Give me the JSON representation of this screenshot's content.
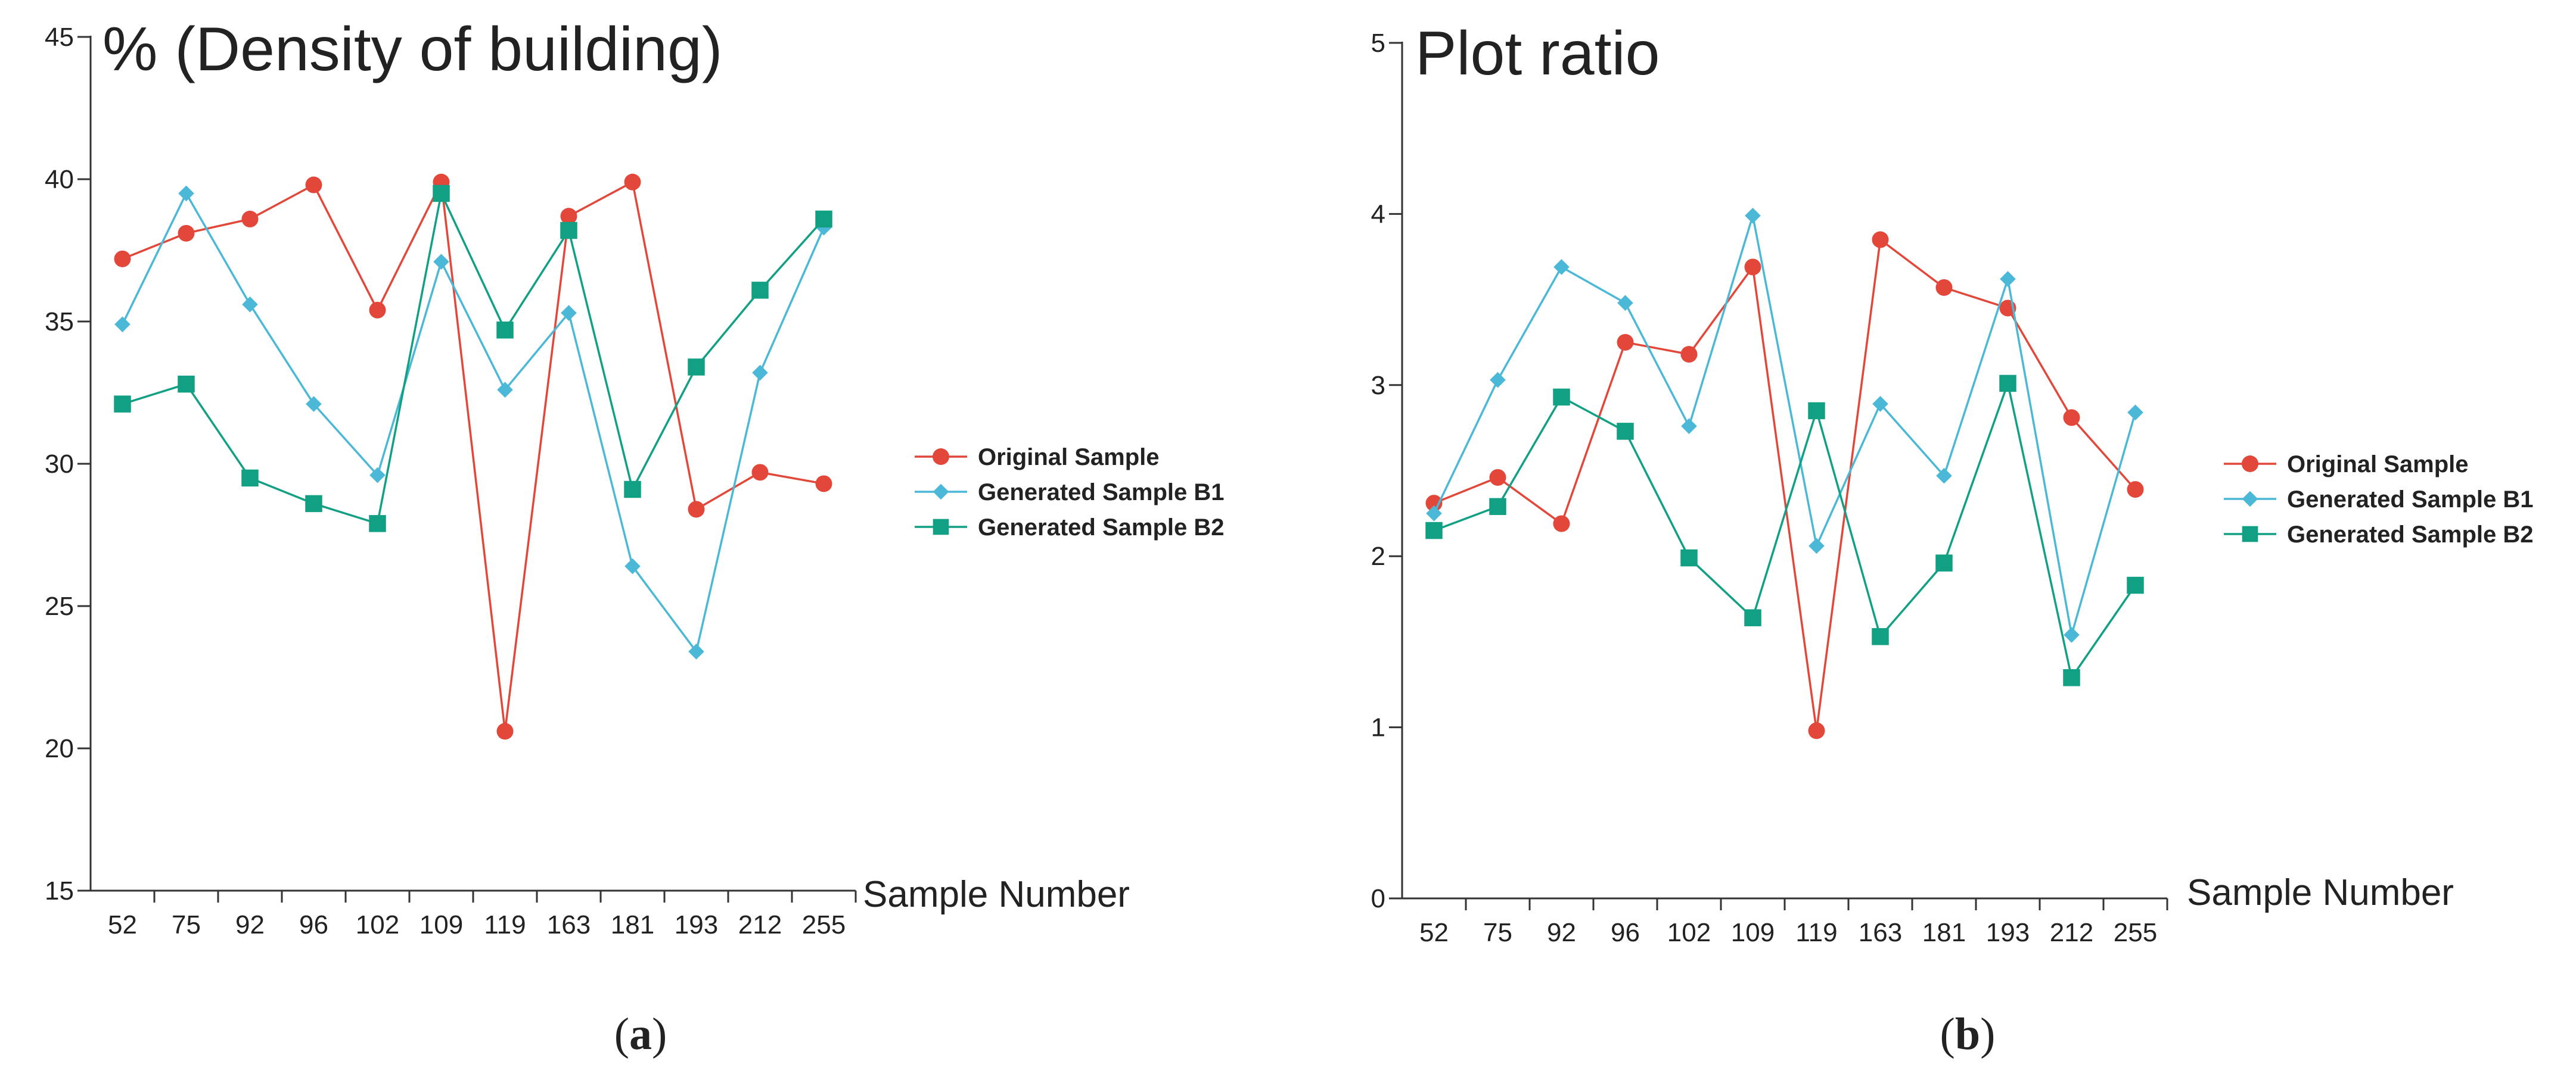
{
  "colors": {
    "original": "#e2473a",
    "b1": "#4ab8d6",
    "b2": "#11a083",
    "axis": "#333333"
  },
  "chart_data": [
    {
      "type": "line",
      "panel_label": "a",
      "title": "% (Density of building)",
      "xlabel": "Sample Number",
      "ylabel": "",
      "categories": [
        "52",
        "75",
        "92",
        "96",
        "102",
        "109",
        "119",
        "163",
        "181",
        "193",
        "212",
        "255"
      ],
      "ylim": [
        15,
        45
      ],
      "yticks": [
        15,
        20,
        25,
        30,
        35,
        40,
        45
      ],
      "series": [
        {
          "name": "Original Sample",
          "key": "original",
          "marker": "circle",
          "values": [
            37.2,
            38.1,
            38.6,
            39.8,
            35.4,
            39.9,
            20.6,
            38.7,
            39.9,
            28.4,
            29.7,
            29.3
          ]
        },
        {
          "name": "Generated Sample B1",
          "key": "b1",
          "marker": "diamond",
          "values": [
            34.9,
            39.5,
            35.6,
            32.1,
            29.6,
            37.1,
            32.6,
            35.3,
            26.4,
            23.4,
            33.2,
            38.3
          ]
        },
        {
          "name": "Generated Sample B2",
          "key": "b2",
          "marker": "square",
          "values": [
            32.1,
            32.8,
            29.5,
            28.6,
            27.9,
            39.5,
            34.7,
            38.2,
            29.1,
            33.4,
            36.1,
            38.6
          ]
        }
      ]
    },
    {
      "type": "line",
      "panel_label": "b",
      "title": "Plot ratio",
      "xlabel": "Sample Number",
      "ylabel": "",
      "categories": [
        "52",
        "75",
        "92",
        "96",
        "102",
        "109",
        "119",
        "163",
        "181",
        "193",
        "212",
        "255"
      ],
      "ylim": [
        0,
        5
      ],
      "yticks": [
        0,
        1,
        2,
        3,
        4,
        5
      ],
      "series": [
        {
          "name": "Original Sample",
          "key": "original",
          "marker": "circle",
          "values": [
            2.31,
            2.46,
            2.19,
            3.25,
            3.18,
            3.69,
            0.98,
            3.85,
            3.57,
            3.45,
            2.81,
            2.39
          ]
        },
        {
          "name": "Generated Sample B1",
          "key": "b1",
          "marker": "diamond",
          "values": [
            2.25,
            3.03,
            3.69,
            3.48,
            2.76,
            3.99,
            2.06,
            2.89,
            2.47,
            3.62,
            1.54,
            2.84
          ]
        },
        {
          "name": "Generated Sample B2",
          "key": "b2",
          "marker": "square",
          "values": [
            2.15,
            2.29,
            2.93,
            2.73,
            1.99,
            1.64,
            2.85,
            1.53,
            1.96,
            3.01,
            1.29,
            1.83
          ]
        }
      ]
    }
  ]
}
